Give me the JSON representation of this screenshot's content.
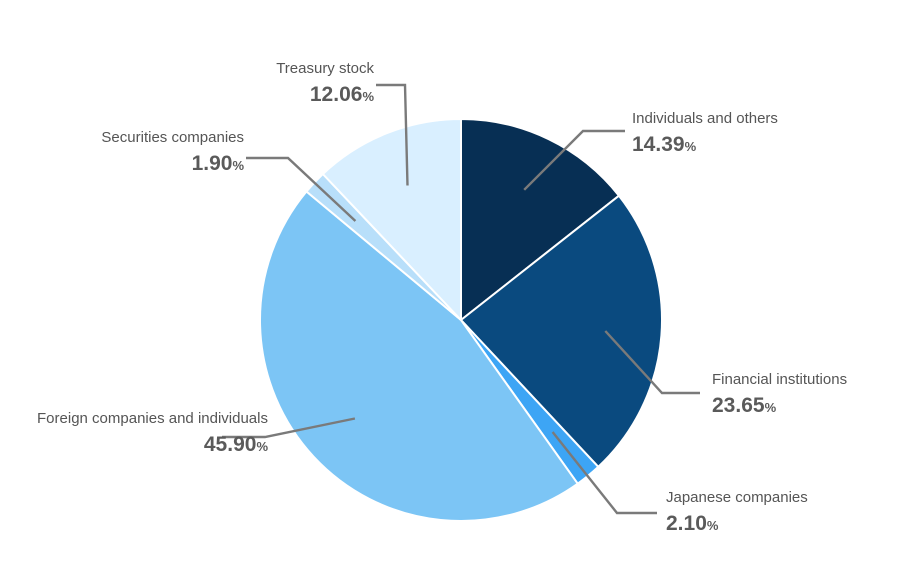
{
  "chart_data": {
    "type": "pie",
    "title": "",
    "unit": "%",
    "slices": [
      {
        "label": "Individuals and others",
        "value": 14.39,
        "display": "14.39",
        "color": "#072f54"
      },
      {
        "label": "Financial institutions",
        "value": 23.65,
        "display": "23.65",
        "color": "#0a4a7f"
      },
      {
        "label": "Japanese companies",
        "value": 2.1,
        "display": "2.10",
        "color": "#3da5f5"
      },
      {
        "label": "Foreign companies and individuals",
        "value": 45.9,
        "display": "45.90",
        "color": "#7cc5f5"
      },
      {
        "label": "Securities companies",
        "value": 1.9,
        "display": "1.90",
        "color": "#b8dffa"
      },
      {
        "label": "Treasury stock",
        "value": 12.06,
        "display": "12.06",
        "color": "#d9efff"
      }
    ],
    "start_angle_deg": 0,
    "direction": "clockwise",
    "legend": "none"
  }
}
